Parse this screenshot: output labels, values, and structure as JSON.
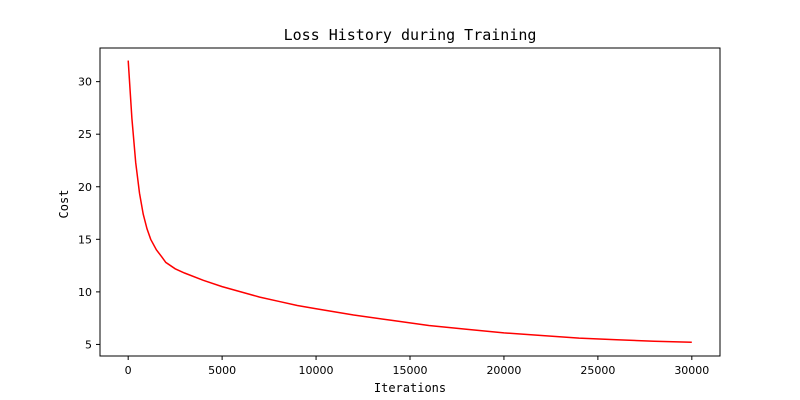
{
  "chart_data": {
    "type": "line",
    "title": "Loss History during Training",
    "xlabel": "Iterations",
    "ylabel": "Cost",
    "xlim": [
      -1500,
      31500
    ],
    "ylim": [
      3.9,
      33.2
    ],
    "xticks": [
      0,
      5000,
      10000,
      15000,
      20000,
      25000,
      30000
    ],
    "yticks": [
      5,
      10,
      15,
      20,
      25,
      30
    ],
    "grid": false,
    "legend": "none",
    "series": [
      {
        "color": "#ff0000",
        "x": [
          0,
          200,
          400,
          600,
          800,
          1000,
          1200,
          1500,
          1800,
          2000,
          2500,
          3000,
          4000,
          5000,
          6000,
          7000,
          8000,
          9000,
          10000,
          12000,
          14000,
          16000,
          18000,
          20000,
          22000,
          24000,
          26000,
          28000,
          30000
        ],
        "y": [
          32.0,
          26.5,
          22.3,
          19.4,
          17.4,
          16.0,
          15.0,
          14.0,
          13.3,
          12.8,
          12.2,
          11.8,
          11.1,
          10.5,
          10.0,
          9.5,
          9.1,
          8.7,
          8.4,
          7.8,
          7.3,
          6.8,
          6.45,
          6.1,
          5.85,
          5.6,
          5.45,
          5.3,
          5.2
        ]
      }
    ]
  }
}
